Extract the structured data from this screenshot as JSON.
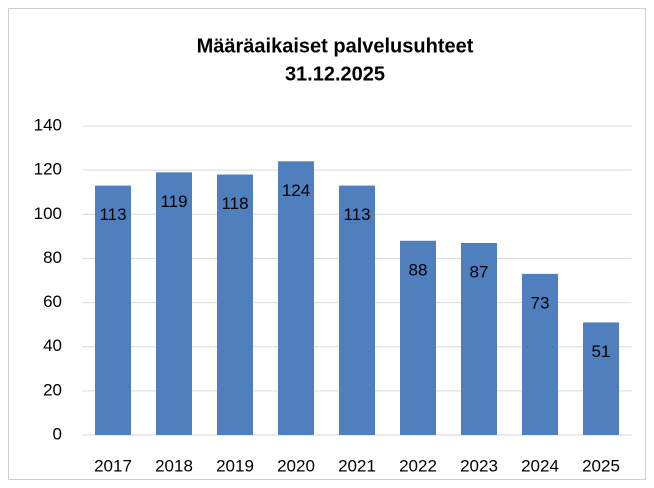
{
  "chart_data": {
    "type": "bar",
    "title": [
      "Määräaikaiset palvelusuhteet",
      "31.12.2025"
    ],
    "categories": [
      "2017",
      "2018",
      "2019",
      "2020",
      "2021",
      "2022",
      "2023",
      "2024",
      "2025"
    ],
    "values": [
      113,
      119,
      118,
      124,
      113,
      88,
      87,
      73,
      51
    ],
    "color": "#4f7fbd",
    "ylim": [
      0,
      140
    ],
    "yticks": [
      0,
      20,
      40,
      60,
      80,
      100,
      120,
      140
    ],
    "grid": true
  }
}
